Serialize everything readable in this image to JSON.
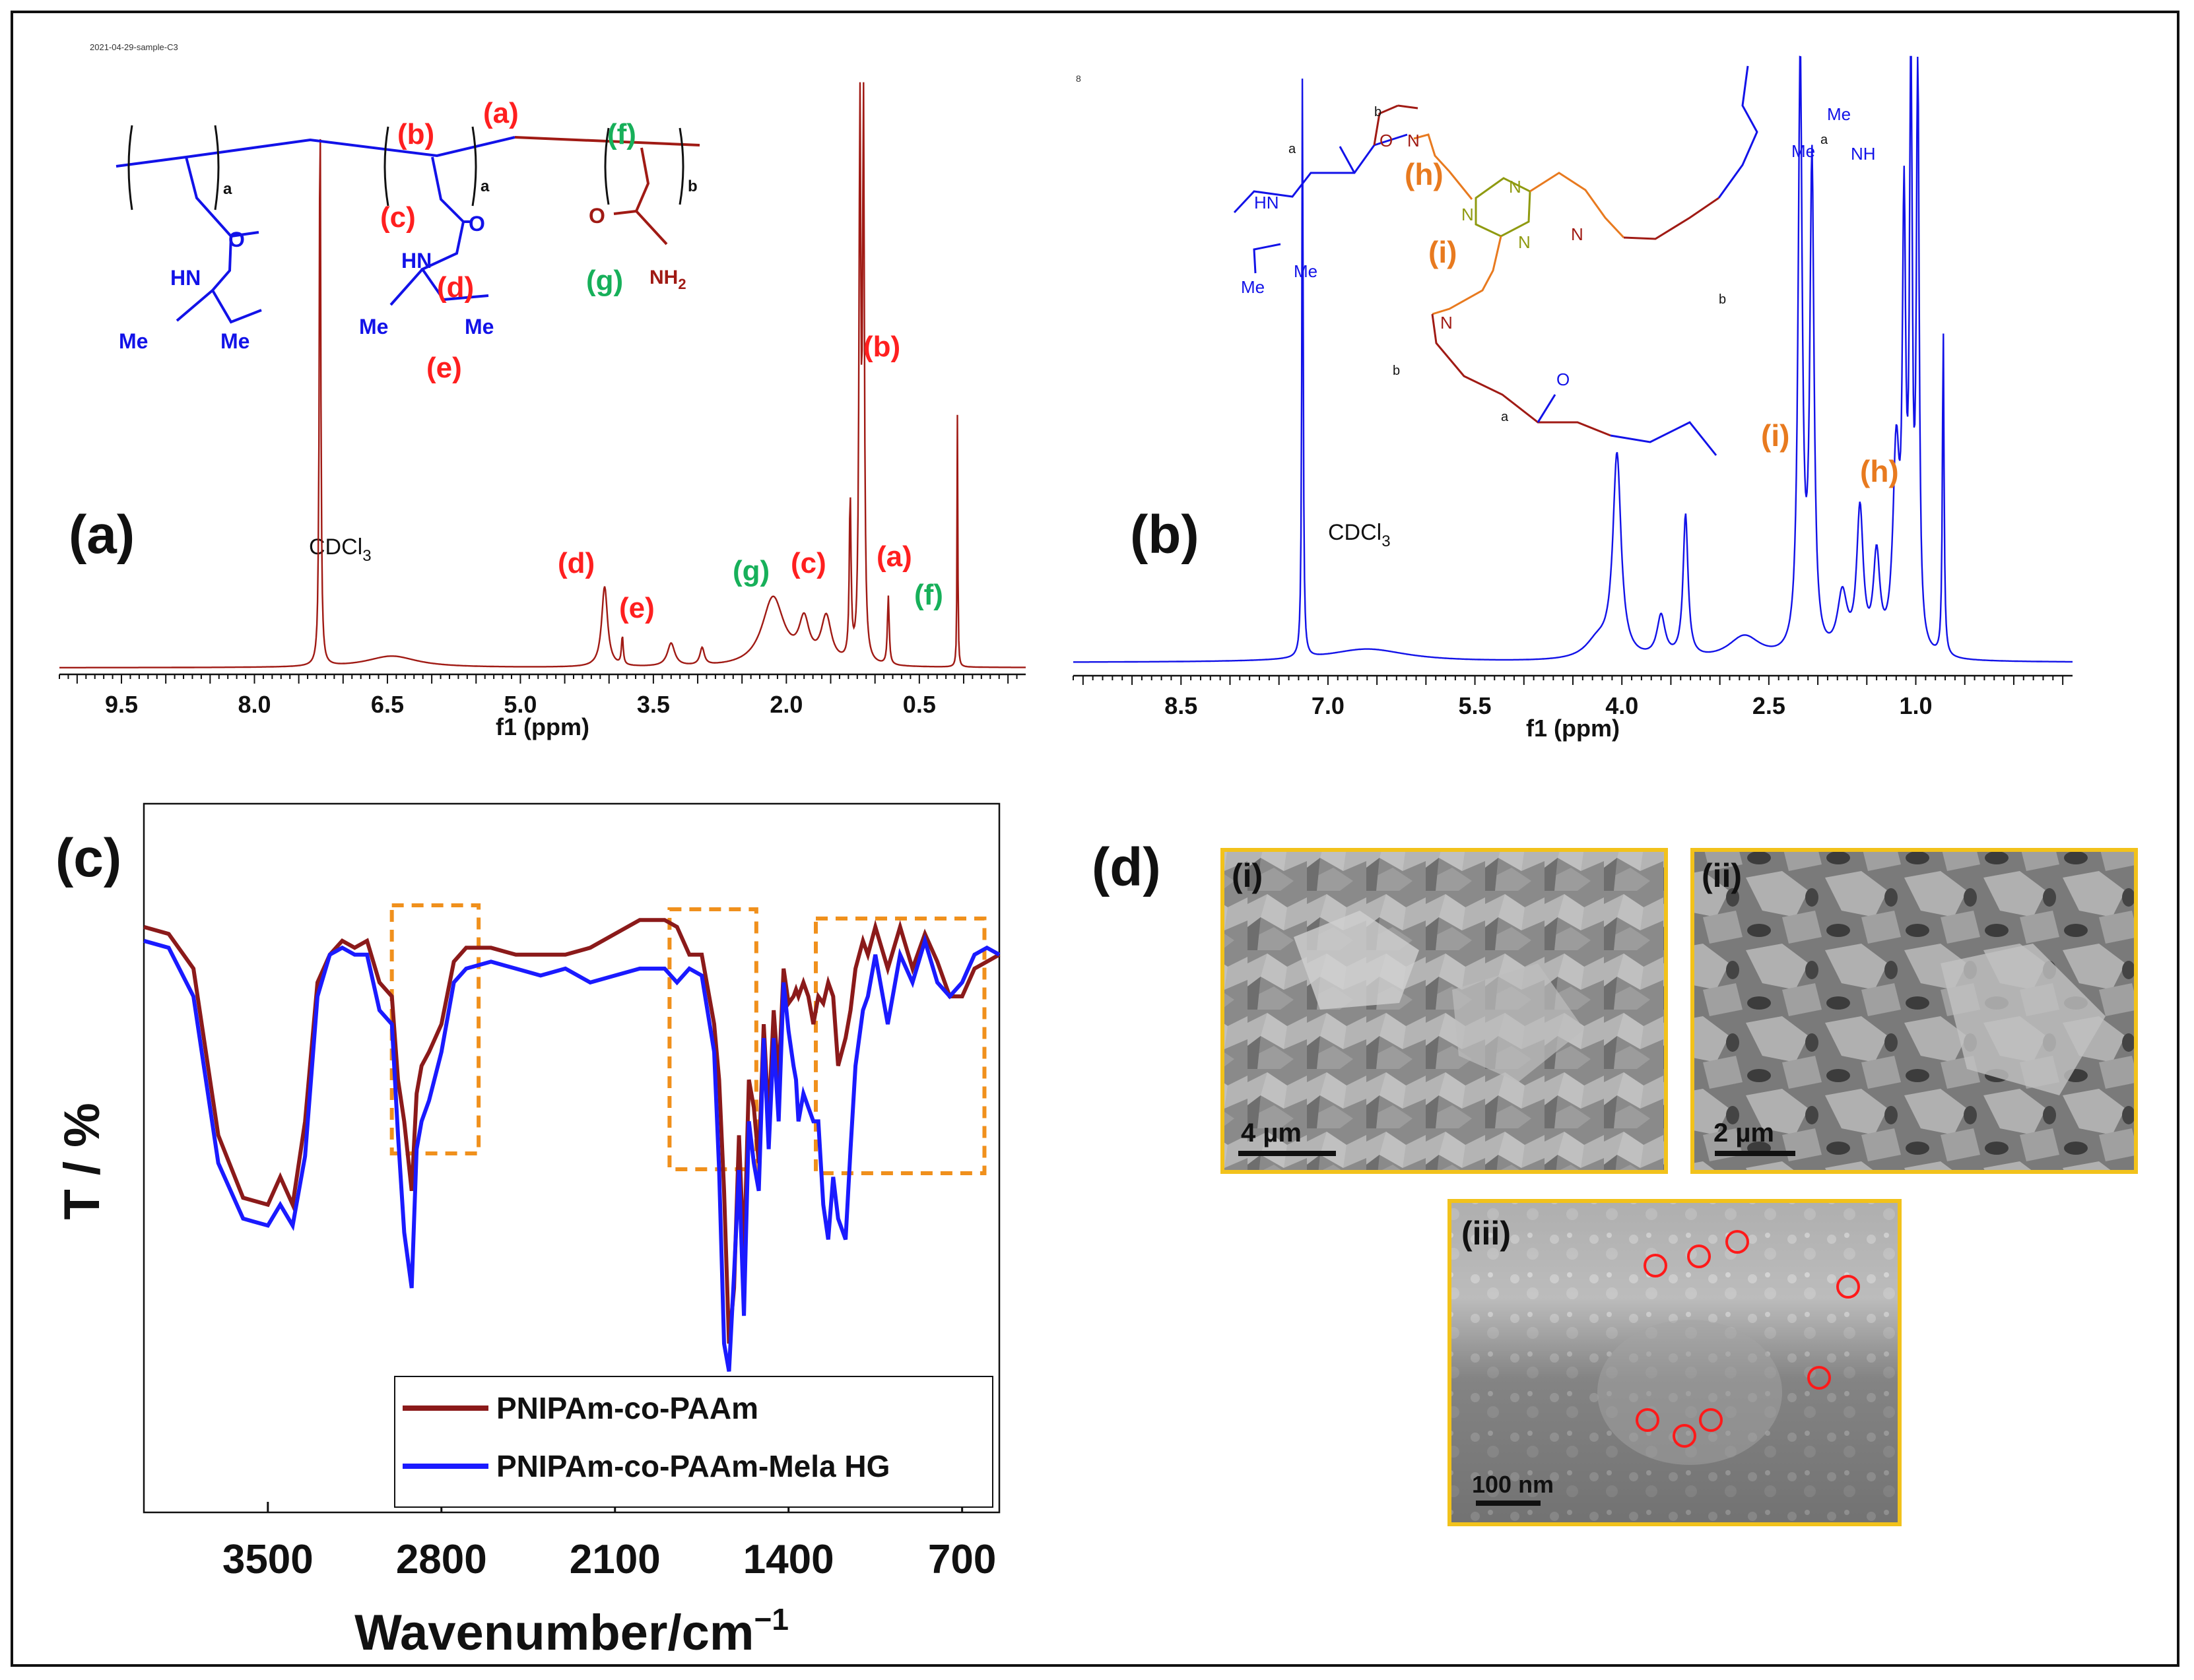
{
  "colors": {
    "nmr_a": "#a01a14",
    "nmr_b": "#1212e8",
    "ir_series1": "#8b1a1a",
    "ir_series2": "#1a1aff",
    "label_red": "#ff1f1f",
    "label_green": "#17b05a",
    "label_orange": "#e87a1f",
    "box_orange": "#f0901c",
    "sem_border": "#f2c21b",
    "chem_olive": "#8f9a10"
  },
  "panel_a": {
    "tag": "(a)",
    "file_label": "2021-04-29-sample-C3",
    "solvent": "CDCl",
    "solvent_sub": "3",
    "peak_labels": [
      "(d)",
      "(e)",
      "(g)",
      "(c)",
      "(a)",
      "(f)",
      "(b)"
    ],
    "structure_labels": [
      "(b)",
      "(a)",
      "(f)",
      "(c)",
      "(d)",
      "(e)",
      "(g)"
    ],
    "subscripts": [
      "a",
      "a",
      "b"
    ],
    "chem_text": [
      "HN",
      "O",
      "Me",
      "Me",
      "HN",
      "O",
      "Me",
      "Me",
      "O",
      "NH",
      "2"
    ]
  },
  "panel_b": {
    "tag": "(b)",
    "corner_mark": "8",
    "solvent": "CDCl",
    "solvent_sub": "3",
    "peak_labels": [
      "(i)",
      "(h)"
    ],
    "structure_labels": [
      "(h)",
      "(i)"
    ],
    "chem_text": [
      "Me",
      "NH",
      "Me",
      "O",
      "N",
      "N",
      "N",
      "N",
      "N",
      "N",
      "O",
      "HN",
      "Me",
      "Me",
      "a",
      "b",
      "a",
      "b",
      "a",
      "b"
    ]
  },
  "panel_c": {
    "tag": "(c)"
  },
  "panel_d": {
    "tag": "(d)",
    "images": [
      {
        "label": "(i)",
        "scale": "4 µm"
      },
      {
        "label": "(ii)",
        "scale": "2 µm"
      },
      {
        "label": "(iii)",
        "scale": "100 nm"
      }
    ]
  },
  "chart_data": [
    {
      "type": "line",
      "title": "",
      "xlabel": "f1 (ppm)",
      "ylabel": "",
      "xlim": [
        10.2,
        -0.7
      ],
      "x_ticks": [
        "9.5",
        "8.0",
        "6.5",
        "5.0",
        "3.5",
        "2.0",
        "0.5"
      ],
      "x_tick_values": [
        9.5,
        8.0,
        6.5,
        5.0,
        3.5,
        2.0,
        0.5
      ],
      "series": [
        {
          "name": "PNIPAm-co-PAAm",
          "peaks_ppm": [
            {
              "ppm": 7.26,
              "height": 1.0,
              "width": 0.01
            },
            {
              "ppm": 6.45,
              "height": 0.02,
              "width": 0.35
            },
            {
              "ppm": 4.05,
              "height": 0.14,
              "width": 0.04
            },
            {
              "ppm": 3.85,
              "height": 0.05,
              "width": 0.012
            },
            {
              "ppm": 3.3,
              "height": 0.04,
              "width": 0.05
            },
            {
              "ppm": 2.95,
              "height": 0.03,
              "width": 0.03
            },
            {
              "ppm": 2.15,
              "height": 0.12,
              "width": 0.15
            },
            {
              "ppm": 1.8,
              "height": 0.07,
              "width": 0.07
            },
            {
              "ppm": 1.55,
              "height": 0.08,
              "width": 0.07
            },
            {
              "ppm": 1.28,
              "height": 0.28,
              "width": 0.012
            },
            {
              "ppm": 1.17,
              "height": 0.95,
              "width": 0.012
            },
            {
              "ppm": 1.13,
              "height": 0.95,
              "width": 0.012
            },
            {
              "ppm": 0.85,
              "height": 0.12,
              "width": 0.012
            },
            {
              "ppm": 0.07,
              "height": 0.45,
              "width": 0.005
            }
          ]
        }
      ]
    },
    {
      "type": "line",
      "title": "",
      "xlabel": "f1 (ppm)",
      "ylabel": "",
      "xlim": [
        9.6,
        -0.6
      ],
      "x_ticks": [
        "8.5",
        "7.0",
        "5.5",
        "4.0",
        "2.5",
        "1.0"
      ],
      "x_tick_values": [
        8.5,
        7.0,
        5.5,
        4.0,
        2.5,
        1.0
      ],
      "series": [
        {
          "name": "PNIPAm-co-PAAm-Mela HG",
          "peaks_ppm": [
            {
              "ppm": 7.26,
              "height": 1.0,
              "width": 0.008
            },
            {
              "ppm": 6.6,
              "height": 0.022,
              "width": 0.5
            },
            {
              "ppm": 4.05,
              "height": 0.34,
              "width": 0.05
            },
            {
              "ppm": 4.25,
              "height": 0.03,
              "width": 0.15
            },
            {
              "ppm": 3.6,
              "height": 0.07,
              "width": 0.05
            },
            {
              "ppm": 3.35,
              "height": 0.24,
              "width": 0.03
            },
            {
              "ppm": 2.75,
              "height": 0.04,
              "width": 0.2
            },
            {
              "ppm": 2.18,
              "height": 1.0,
              "width": 0.025
            },
            {
              "ppm": 2.06,
              "height": 0.82,
              "width": 0.025
            },
            {
              "ppm": 1.75,
              "height": 0.1,
              "width": 0.06
            },
            {
              "ppm": 1.57,
              "height": 0.24,
              "width": 0.04
            },
            {
              "ppm": 1.4,
              "height": 0.16,
              "width": 0.04
            },
            {
              "ppm": 1.2,
              "height": 0.33,
              "width": 0.04
            },
            {
              "ppm": 1.12,
              "height": 0.7,
              "width": 0.02
            },
            {
              "ppm": 1.05,
              "height": 1.0,
              "width": 0.016
            },
            {
              "ppm": 0.98,
              "height": 1.0,
              "width": 0.016
            },
            {
              "ppm": 0.72,
              "height": 0.55,
              "width": 0.01
            }
          ]
        }
      ]
    },
    {
      "type": "line",
      "title": "",
      "xlabel": "Wavenumber/cm",
      "xlabel_superscript": "−1",
      "ylabel": "T / %",
      "xlim": [
        4000,
        550
      ],
      "ylim": [
        0,
        100
      ],
      "x_ticks": [
        "3500",
        "2800",
        "2100",
        "1400",
        "700"
      ],
      "x_tick_values": [
        3500,
        2800,
        2100,
        1400,
        700
      ],
      "legend": {
        "placement": "bottom-right",
        "entries": [
          "PNIPAm-co-PAAm",
          "PNIPAm-co-PAAm-Mela HG"
        ]
      },
      "highlight_ranges_cm1": [
        [
          3000,
          2650
        ],
        [
          1880,
          1530
        ],
        [
          1290,
          610
        ]
      ],
      "series": [
        {
          "name": "PNIPAm-co-PAAm",
          "x": [
            4000,
            3900,
            3800,
            3700,
            3600,
            3500,
            3450,
            3400,
            3350,
            3300,
            3250,
            3200,
            3150,
            3100,
            3050,
            3000,
            2975,
            2950,
            2920,
            2900,
            2880,
            2850,
            2800,
            2750,
            2700,
            2600,
            2500,
            2400,
            2300,
            2200,
            2100,
            2000,
            1900,
            1850,
            1800,
            1750,
            1700,
            1680,
            1660,
            1640,
            1620,
            1600,
            1580,
            1560,
            1540,
            1520,
            1500,
            1480,
            1460,
            1440,
            1420,
            1400,
            1380,
            1370,
            1360,
            1340,
            1320,
            1300,
            1280,
            1260,
            1240,
            1220,
            1200,
            1170,
            1150,
            1130,
            1100,
            1080,
            1050,
            1000,
            950,
            900,
            850,
            800,
            750,
            700,
            650,
            600,
            550
          ],
          "y": [
            90,
            89,
            84,
            60,
            51,
            50,
            54,
            50,
            62,
            82,
            86,
            88,
            87,
            88,
            82,
            80,
            68,
            62,
            52,
            66,
            70,
            72,
            76,
            85,
            87,
            87,
            86,
            86,
            86,
            87,
            89,
            91,
            91,
            90,
            86,
            86,
            76,
            68,
            52,
            30,
            38,
            60,
            42,
            68,
            64,
            56,
            76,
            62,
            78,
            68,
            84,
            79,
            80,
            81,
            80,
            82,
            80,
            76,
            80,
            79,
            82,
            80,
            70,
            74,
            78,
            84,
            88,
            86,
            90,
            84,
            90,
            84,
            89,
            85,
            80,
            80,
            84,
            85,
            86
          ]
        },
        {
          "name": "PNIPAm-co-PAAm-Mela HG",
          "x": [
            4000,
            3900,
            3800,
            3700,
            3600,
            3500,
            3450,
            3400,
            3350,
            3300,
            3250,
            3200,
            3150,
            3100,
            3050,
            3000,
            2975,
            2950,
            2920,
            2900,
            2880,
            2850,
            2800,
            2750,
            2700,
            2600,
            2500,
            2400,
            2300,
            2200,
            2100,
            2000,
            1900,
            1850,
            1800,
            1750,
            1700,
            1680,
            1660,
            1640,
            1620,
            1600,
            1580,
            1560,
            1540,
            1520,
            1500,
            1480,
            1460,
            1440,
            1420,
            1400,
            1380,
            1370,
            1360,
            1340,
            1320,
            1300,
            1280,
            1260,
            1240,
            1220,
            1200,
            1170,
            1150,
            1130,
            1100,
            1080,
            1050,
            1000,
            950,
            900,
            850,
            800,
            750,
            700,
            650,
            600,
            550
          ],
          "y": [
            88,
            87,
            80,
            56,
            48,
            47,
            50,
            47,
            57,
            80,
            86,
            87,
            86,
            86,
            78,
            76,
            60,
            46,
            38,
            58,
            62,
            65,
            72,
            82,
            84,
            85,
            84,
            83,
            84,
            82,
            83,
            84,
            84,
            82,
            84,
            83,
            72,
            55,
            30,
            26,
            40,
            55,
            34,
            62,
            56,
            52,
            74,
            58,
            74,
            62,
            82,
            75,
            70,
            68,
            62,
            66,
            64,
            62,
            62,
            50,
            45,
            54,
            48,
            45,
            58,
            70,
            78,
            80,
            86,
            76,
            86,
            82,
            88,
            82,
            80,
            82,
            86,
            87,
            86
          ]
        }
      ]
    }
  ]
}
